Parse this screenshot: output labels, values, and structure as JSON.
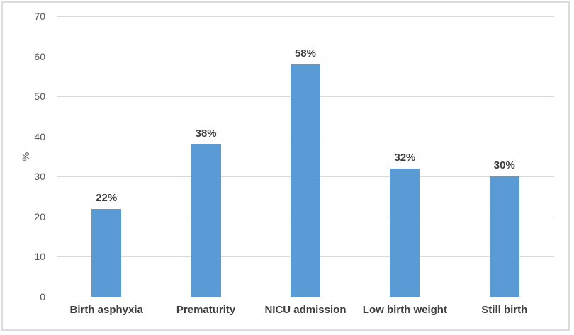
{
  "chart_data": {
    "type": "bar",
    "title": "",
    "categories": [
      "Birth asphyxia",
      "Prematurity",
      "NICU admission",
      "Low birth weight",
      "Still birth"
    ],
    "values": [
      22,
      38,
      58,
      32,
      30
    ],
    "value_labels": [
      "22%",
      "38%",
      "58%",
      "32%",
      "30%"
    ],
    "xlabel": "",
    "ylabel": "%",
    "ylim": [
      0,
      70
    ],
    "yticks": [
      0,
      10,
      20,
      30,
      40,
      50,
      60,
      70
    ],
    "legend": "none",
    "grid": "horizontal",
    "bar_color": "#5b9bd5",
    "gridline_color": "#d9d9d9",
    "axis_line_color": "#d9d9d9",
    "tick_label_color": "#595959",
    "data_label_color": "#3f3f3f",
    "frame_border_color": "#dcdcdc",
    "background_color": "#ffffff"
  }
}
